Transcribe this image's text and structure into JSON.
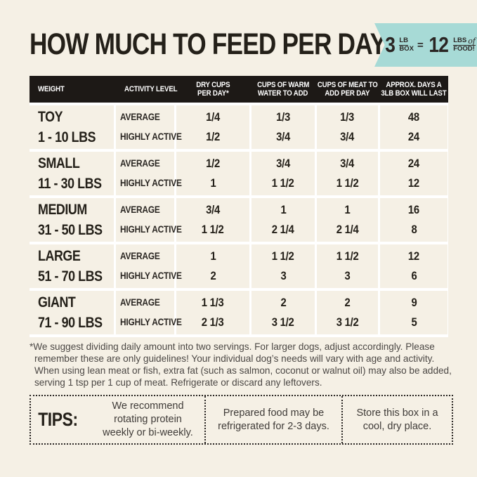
{
  "page": {
    "title": "HOW MUCH TO FEED PER DAY",
    "background_color": "#f5f0e5",
    "ink_color": "#242019",
    "header_bar_color": "#1d1916",
    "accent_teal": "#a7dad6"
  },
  "ribbon": {
    "big_left": "3",
    "frac_left_top": "LB",
    "frac_left_bottom": "BOX",
    "equals": "=",
    "big_right": "12",
    "frac_right_top": "LBS",
    "frac_right_of": "of",
    "frac_right_bottom": "FOOD!"
  },
  "table": {
    "headers": [
      {
        "line1": "WEIGHT",
        "line2": ""
      },
      {
        "line1": "ACTIVITY LEVEL",
        "line2": ""
      },
      {
        "line1": "DRY CUPS",
        "line2": "PER DAY*"
      },
      {
        "line1": "CUPS OF WARM",
        "line2": "WATER TO ADD"
      },
      {
        "line1": "CUPS OF MEAT TO",
        "line2": "ADD PER DAY"
      },
      {
        "line1": "APPROX. DAYS A",
        "line2": "3LB BOX WILL LAST"
      }
    ],
    "activity_labels": {
      "avg": "AVERAGE",
      "active": "HIGHLY ACTIVE"
    },
    "rows": [
      {
        "size": "TOY",
        "range": "1 - 10 LBS",
        "dry_avg": "1/4",
        "dry_act": "1/2",
        "water_avg": "1/3",
        "water_act": "3/4",
        "meat_avg": "1/3",
        "meat_act": "3/4",
        "days_avg": "48",
        "days_act": "24"
      },
      {
        "size": "SMALL",
        "range": "11 - 30 LBS",
        "dry_avg": "1/2",
        "dry_act": "1",
        "water_avg": "3/4",
        "water_act": "1 1/2",
        "meat_avg": "3/4",
        "meat_act": "1 1/2",
        "days_avg": "24",
        "days_act": "12"
      },
      {
        "size": "MEDIUM",
        "range": "31 - 50 LBS",
        "dry_avg": "3/4",
        "dry_act": "1 1/2",
        "water_avg": "1",
        "water_act": "2 1/4",
        "meat_avg": "1",
        "meat_act": "2 1/4",
        "days_avg": "16",
        "days_act": "8"
      },
      {
        "size": "LARGE",
        "range": "51 - 70 LBS",
        "dry_avg": "1",
        "dry_act": "2",
        "water_avg": "1 1/2",
        "water_act": "3",
        "meat_avg": "1 1/2",
        "meat_act": "3",
        "days_avg": "12",
        "days_act": "6"
      },
      {
        "size": "GIANT",
        "range": "71 - 90 LBS",
        "dry_avg": "1 1/3",
        "dry_act": "2 1/3",
        "water_avg": "2",
        "water_act": "3 1/2",
        "meat_avg": "2",
        "meat_act": "3 1/2",
        "days_avg": "9",
        "days_act": "5"
      }
    ]
  },
  "footnote": "*We suggest dividing daily amount into two servings. For larger dogs, adjust accordingly. Please remember these are only guidelines! Your individual dog’s needs will vary with age and activity. When using lean meat or fish, extra fat (such as salmon, coconut or walnut oil) may also be added, serving 1 tsp per 1 cup of meat. Refrigerate or discard any leftovers.",
  "tips": {
    "label": "TIPS:",
    "items": [
      "We recommend rotating protein weekly or bi-weekly.",
      "Prepared food may be refrigerated for 2-3 days.",
      "Store this box in a cool, dry place."
    ]
  }
}
